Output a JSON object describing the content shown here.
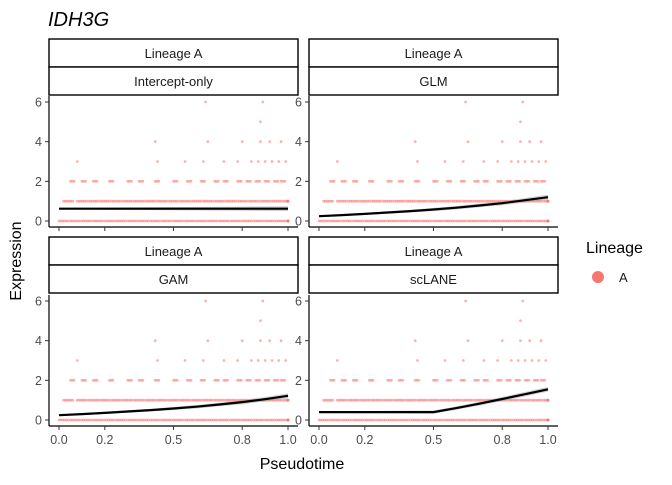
{
  "chart_data": {
    "type": "scatter",
    "title": "IDH3G",
    "xlabel": "Pseudotime",
    "ylabel": "Expression",
    "xlim": [
      0,
      1
    ],
    "ylim": [
      0,
      6
    ],
    "x_ticks": [
      0.0,
      0.2,
      0.5,
      0.8,
      1.0
    ],
    "x_tick_labels": [
      "0.0",
      "0.2",
      "0.5",
      "0.8",
      "1.0"
    ],
    "y_ticks": [
      0,
      2,
      4,
      6
    ],
    "y_tick_labels": [
      "0",
      "2",
      "4",
      "6"
    ],
    "legend": {
      "title": "Lineage",
      "position": "right",
      "entries": [
        {
          "label": "A",
          "color": "#F8766D"
        }
      ]
    },
    "point_color": "#F8766D",
    "fit_color": "#000000",
    "panels": [
      {
        "strip_top": "Lineage A",
        "strip_bottom": "Intercept-only",
        "fit": {
          "x": [
            0,
            1
          ],
          "y": [
            0.62,
            0.62
          ]
        }
      },
      {
        "strip_top": "Lineage A",
        "strip_bottom": "GLM",
        "fit": {
          "x": [
            0,
            0.1,
            0.2,
            0.3,
            0.4,
            0.5,
            0.6,
            0.7,
            0.8,
            0.9,
            1.0
          ],
          "y": [
            0.24,
            0.3,
            0.36,
            0.43,
            0.5,
            0.58,
            0.67,
            0.78,
            0.9,
            1.05,
            1.2
          ]
        }
      },
      {
        "strip_top": "Lineage A",
        "strip_bottom": "GAM",
        "fit": {
          "x": [
            0,
            0.1,
            0.2,
            0.3,
            0.4,
            0.5,
            0.6,
            0.7,
            0.8,
            0.9,
            1.0
          ],
          "y": [
            0.24,
            0.3,
            0.36,
            0.43,
            0.5,
            0.58,
            0.67,
            0.78,
            0.9,
            1.05,
            1.22
          ]
        }
      },
      {
        "strip_top": "Lineage A",
        "strip_bottom": "scLANE",
        "fit": {
          "x": [
            0,
            0.1,
            0.2,
            0.3,
            0.4,
            0.5,
            0.6,
            0.7,
            0.8,
            0.9,
            1.0
          ],
          "y": [
            0.4,
            0.4,
            0.4,
            0.4,
            0.4,
            0.4,
            0.6,
            0.82,
            1.06,
            1.3,
            1.55
          ]
        }
      }
    ],
    "points": {
      "x": [
        0.0,
        0.05,
        0.1,
        0.15,
        0.2,
        0.25,
        0.3,
        0.35,
        0.4,
        0.45,
        0.5,
        0.55,
        0.6,
        0.65,
        0.7,
        0.75,
        0.8,
        0.85,
        0.9,
        0.95,
        1.0,
        0.02,
        0.08,
        0.13,
        0.18,
        0.23,
        0.28,
        0.33,
        0.38,
        0.43,
        0.48,
        0.53,
        0.58,
        0.63,
        0.68,
        0.73,
        0.78,
        0.83,
        0.88,
        0.93,
        0.98,
        0.05,
        0.1,
        0.15,
        0.22,
        0.3,
        0.35,
        0.42,
        0.5,
        0.56,
        0.62,
        0.68,
        0.72,
        0.78,
        0.82,
        0.86,
        0.9,
        0.94,
        0.97,
        0.08,
        0.43,
        0.55,
        0.63,
        0.72,
        0.78,
        0.84,
        0.87,
        0.9,
        0.93,
        0.96,
        0.99,
        0.42,
        0.65,
        0.8,
        0.88,
        0.92,
        0.97,
        0.88,
        0.64,
        0.89
      ],
      "y": [
        0,
        0,
        0,
        0,
        0,
        0,
        0,
        0,
        0,
        0,
        0,
        0,
        0,
        0,
        0,
        0,
        0,
        0,
        0,
        0,
        0,
        1,
        1,
        1,
        1,
        1,
        1,
        1,
        1,
        1,
        1,
        1,
        1,
        1,
        1,
        1,
        1,
        1,
        1,
        1,
        1,
        2,
        2,
        2,
        2,
        2,
        2,
        2,
        2,
        2,
        2,
        2,
        2,
        2,
        2,
        2,
        2,
        2,
        2,
        3,
        3,
        3,
        3,
        3,
        3,
        3,
        3,
        3,
        3,
        3,
        3,
        4,
        4,
        4,
        4,
        4,
        4,
        5,
        6,
        6
      ]
    }
  }
}
